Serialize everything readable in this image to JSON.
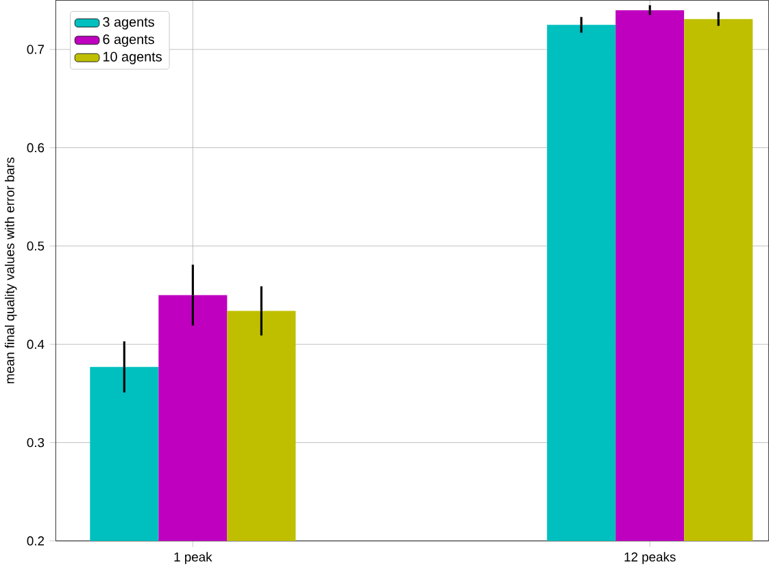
{
  "chart_data": {
    "type": "bar",
    "ylabel": "mean final quality values with error bars",
    "categories": [
      "1 peak",
      "12 peaks"
    ],
    "series": [
      {
        "name": "3 agents",
        "color": "#00bfbf",
        "values": [
          0.377,
          0.725
        ],
        "errors": [
          0.026,
          0.008
        ]
      },
      {
        "name": "6 agents",
        "color": "#bf00bf",
        "values": [
          0.45,
          0.74
        ],
        "errors": [
          0.031,
          0.005
        ]
      },
      {
        "name": "10 agents",
        "color": "#bfbf00",
        "values": [
          0.434,
          0.731
        ],
        "errors": [
          0.025,
          0.007
        ]
      }
    ],
    "ylim": [
      0.2,
      0.75
    ],
    "yticks": [
      0.2,
      0.3,
      0.4,
      0.5,
      0.6,
      0.7
    ],
    "grid": true,
    "legend": "top left"
  }
}
